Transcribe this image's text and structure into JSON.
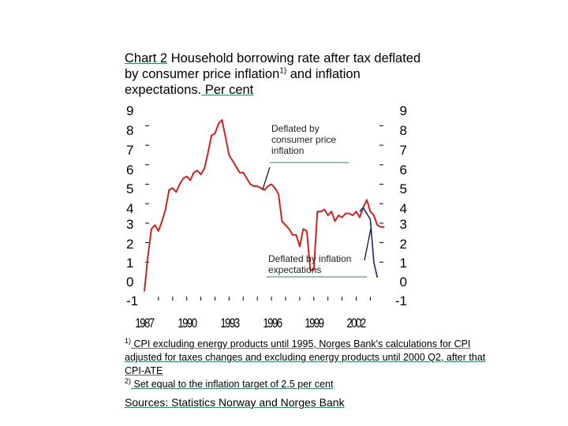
{
  "title": {
    "chart_label": "Chart 2",
    "text_a": " Household borrowing rate after tax deflated by consumer price inflation",
    "sup": "1)",
    "text_b": " and inflation expectations.",
    "unit": " Per cent"
  },
  "annotations": {
    "cpi": "Deflated by consumer price inflation",
    "expectations": "Deflated by inflation expectations"
  },
  "footnotes": {
    "f1_mark": "1)",
    "f1_text": " CPI excluding energy products until 1995, Norges Bank's calculations for CPI adjusted for taxes changes and excluding energy products until 2000 Q2, after that CPI-ATE",
    "f2_mark": "2)",
    "f2_text": " Set equal to the inflation target of 2.5 per cent"
  },
  "sources": "Sources: Statistics Norway and Norges Bank",
  "colors": {
    "cpi_series": "#cc2222",
    "expectations_series": "#1a237e",
    "underline": "#2e8b57"
  },
  "chart_data": {
    "type": "line",
    "xlabel": "",
    "ylabel": "",
    "ylim": [
      -1,
      9
    ],
    "xlim": [
      1987,
      2004
    ],
    "x_ticks": [
      "1987",
      "1990",
      "1993",
      "1996",
      "1999",
      "2002"
    ],
    "y_ticks": [
      "9",
      "8",
      "7",
      "6",
      "5",
      "4",
      "3",
      "2",
      "1",
      "0",
      "-1"
    ],
    "series": [
      {
        "name": "Deflated by consumer price inflation",
        "x": [
          1987.0,
          1987.25,
          1987.5,
          1987.75,
          1988.0,
          1988.25,
          1988.5,
          1988.75,
          1989.0,
          1989.25,
          1989.5,
          1989.75,
          1990.0,
          1990.25,
          1990.5,
          1990.75,
          1991.0,
          1991.25,
          1991.5,
          1991.75,
          1992.0,
          1992.25,
          1992.5,
          1992.75,
          1993.0,
          1993.25,
          1993.5,
          1993.75,
          1994.0,
          1994.25,
          1994.5,
          1994.75,
          1995.0,
          1995.25,
          1995.5,
          1995.75,
          1996.0,
          1996.25,
          1996.5,
          1996.75,
          1997.0,
          1997.25,
          1997.5,
          1997.75,
          1998.0,
          1998.25,
          1998.5,
          1998.75,
          1999.0,
          1999.25,
          1999.5,
          1999.75,
          2000.0,
          2000.25,
          2000.5,
          2000.75,
          2001.0,
          2001.25,
          2001.5,
          2001.75,
          2002.0,
          2002.25,
          2002.5,
          2002.75,
          2003.0,
          2003.25,
          2003.5,
          2003.75,
          2004.0
        ],
        "values": [
          -0.5,
          1.3,
          2.7,
          2.9,
          2.6,
          3.1,
          3.7,
          4.7,
          4.8,
          4.6,
          5.0,
          5.3,
          5.4,
          5.2,
          5.6,
          5.7,
          5.5,
          5.8,
          6.6,
          7.5,
          7.6,
          8.1,
          8.3,
          7.4,
          6.5,
          6.2,
          5.9,
          5.6,
          5.6,
          5.3,
          5.0,
          4.9,
          4.9,
          4.8,
          4.7,
          4.9,
          5.0,
          4.8,
          4.5,
          3.1,
          2.9,
          2.7,
          2.4,
          2.4,
          1.8,
          2.7,
          2.6,
          0.6,
          0.6,
          3.6,
          3.6,
          3.7,
          3.4,
          3.6,
          3.1,
          3.4,
          3.3,
          3.5,
          3.5,
          3.4,
          3.6,
          3.3,
          3.8,
          4.2,
          3.6,
          3.4,
          2.9,
          2.8,
          2.8
        ]
      },
      {
        "name": "Deflated by inflation expectations",
        "x": [
          2002.25,
          2002.5,
          2002.75,
          2003.0,
          2003.25,
          2003.5
        ],
        "values": [
          3.6,
          3.8,
          3.5,
          3.2,
          1.0,
          0.2
        ]
      }
    ]
  }
}
